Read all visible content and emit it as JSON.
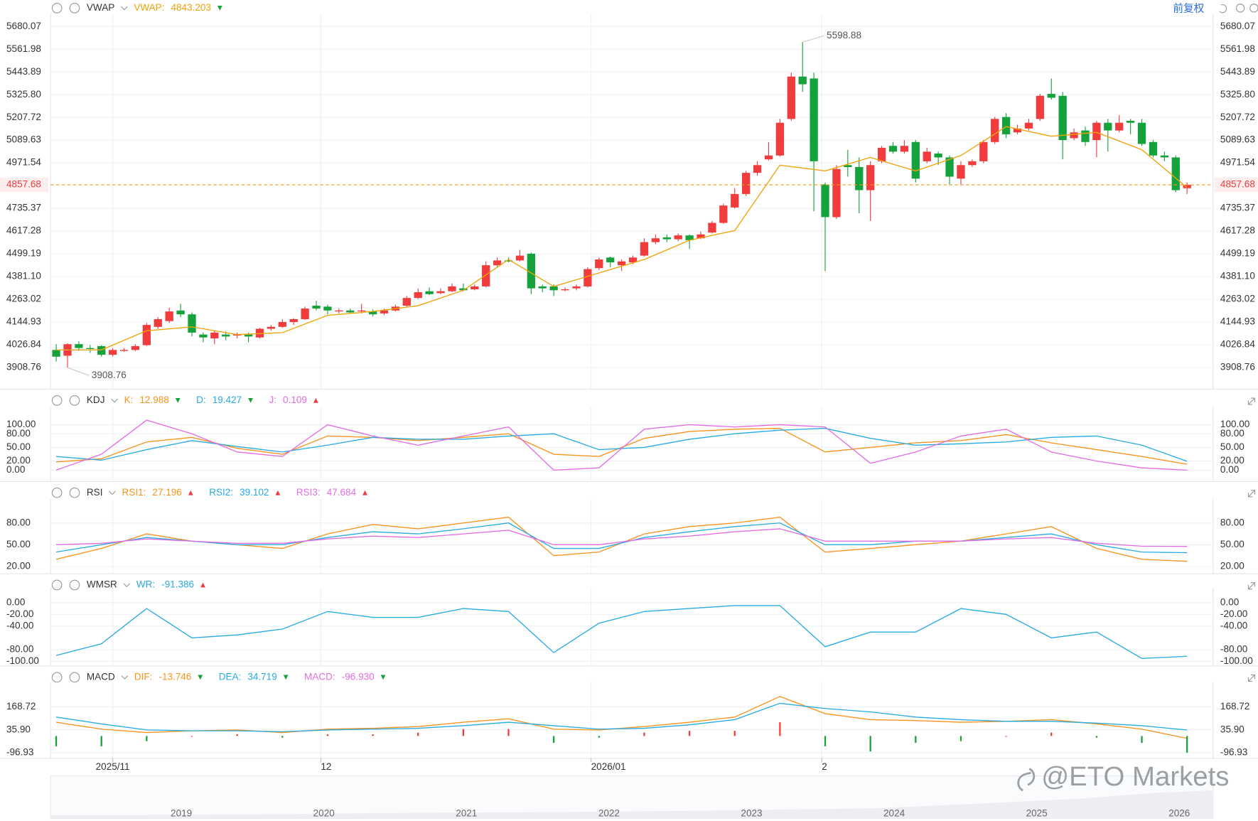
{
  "chart_data": [
    {
      "type": "candlestick",
      "title": "VWAP",
      "adjust": "前复权",
      "up_color": "#f03c3c",
      "down_color": "#16a23a",
      "xlim": [
        -0.5,
        102.3
      ],
      "xticks": [
        {
          "value": 5,
          "label": "2025/11"
        },
        {
          "value": 23.4,
          "label": "12"
        },
        {
          "value": 47.3,
          "label": "2026/01"
        },
        {
          "value": 67.7,
          "label": "2"
        }
      ],
      "ylim": [
        3796,
        5713
      ],
      "yticks": [
        5680.07,
        5561.98,
        5443.89,
        {
          "value": 5325.8,
          "label": "5325.80"
        },
        5207.72,
        5089.63,
        4971.54,
        4735.37,
        4617.28,
        4499.19,
        {
          "value": 4381.1,
          "label": "4381.10"
        },
        4263.02,
        4144.93,
        4026.84,
        3908.76
      ],
      "last_price": 4857.68,
      "last_price_color": "#f03c3c",
      "annotations": [
        {
          "x": 66,
          "value": 5598.88
        },
        {
          "x": 1,
          "value": 3908.76
        }
      ],
      "open": [
        4000,
        3970,
        4030,
        4010,
        4020,
        3975,
        3995,
        4000,
        4025,
        4120,
        4150,
        4205,
        4185,
        4080,
        4060,
        4080,
        4075,
        4080,
        4065,
        4110,
        4120,
        4145,
        4160,
        4230,
        4225,
        4200,
        4205,
        4200,
        4200,
        4190,
        4205,
        4230,
        4270,
        4305,
        4295,
        4305,
        4320,
        4315,
        4330,
        4440,
        4465,
        4465,
        4500,
        4330,
        4330,
        4310,
        4320,
        4330,
        4425,
        4480,
        4440,
        4455,
        4490,
        4560,
        4585,
        4575,
        4595,
        4580,
        4610,
        4660,
        4740,
        4810,
        4920,
        4990,
        5010,
        5200,
        5420,
        5410,
        4860,
        4690,
        4960,
        4950,
        4830,
        4980,
        5060,
        5030,
        5080,
        4980,
        5020,
        5000,
        4890,
        4960,
        4980,
        5080,
        5210,
        5130,
        5150,
        5200,
        5330,
        5320,
        5100,
        5140,
        5090,
        5180,
        5140,
        5190,
        5180,
        5080,
        5010,
        5000,
        4840
      ],
      "high": [
        4030,
        4035,
        4045,
        4025,
        4025,
        4010,
        4010,
        4030,
        4140,
        4170,
        4220,
        4240,
        4195,
        4090,
        4100,
        4095,
        4090,
        4090,
        4115,
        4130,
        4160,
        4165,
        4225,
        4255,
        4235,
        4215,
        4215,
        4240,
        4210,
        4215,
        4235,
        4280,
        4320,
        4325,
        4320,
        4345,
        4345,
        4340,
        4460,
        4480,
        4480,
        4520,
        4505,
        4340,
        4340,
        4325,
        4340,
        4430,
        4480,
        4485,
        4470,
        4490,
        4580,
        4600,
        4600,
        4605,
        4600,
        4615,
        4670,
        4760,
        4840,
        4930,
        4980,
        5080,
        5200,
        5440,
        5598.88,
        5440,
        4870,
        4960,
        5040,
        5000,
        4980,
        5060,
        5080,
        5090,
        5090,
        5050,
        5030,
        5010,
        4980,
        4990,
        5090,
        5210,
        5230,
        5170,
        5200,
        5330,
        5410,
        5340,
        5150,
        5160,
        5190,
        5200,
        5220,
        5200,
        5200,
        5090,
        5030,
        5010,
        4870
      ],
      "low": [
        3940,
        3908.76,
        3995,
        3985,
        3965,
        3965,
        3990,
        3995,
        4020,
        4110,
        4140,
        4170,
        4070,
        4040,
        4030,
        4050,
        4060,
        4040,
        4060,
        4100,
        4115,
        4130,
        4155,
        4205,
        4185,
        4190,
        4190,
        4190,
        4175,
        4180,
        4200,
        4225,
        4265,
        4285,
        4290,
        4300,
        4305,
        4310,
        4325,
        4430,
        4455,
        4460,
        4290,
        4300,
        4280,
        4305,
        4310,
        4325,
        4415,
        4430,
        4410,
        4445,
        4485,
        4550,
        4560,
        4565,
        4525,
        4575,
        4605,
        4655,
        4735,
        4800,
        4905,
        4985,
        5005,
        5190,
        5340,
        4720,
        4410,
        4680,
        4900,
        4710,
        4670,
        4970,
        5020,
        5020,
        4870,
        4970,
        4960,
        4860,
        4860,
        4950,
        4970,
        5070,
        5100,
        5120,
        5140,
        5190,
        5300,
        4990,
        5090,
        5060,
        5000,
        5030,
        5130,
        5120,
        5060,
        5000,
        4980,
        4820,
        4810
      ],
      "close": [
        3965,
        4030,
        4010,
        4005,
        3975,
        4000,
        4000,
        4020,
        4130,
        4160,
        4200,
        4185,
        4090,
        4065,
        4090,
        4070,
        4080,
        4070,
        4110,
        4120,
        4145,
        4160,
        4215,
        4215,
        4205,
        4205,
        4195,
        4205,
        4185,
        4205,
        4225,
        4270,
        4300,
        4290,
        4305,
        4330,
        4310,
        4330,
        4440,
        4465,
        4460,
        4490,
        4320,
        4320,
        4310,
        4315,
        4330,
        4420,
        4470,
        4455,
        4460,
        4480,
        4560,
        4580,
        4575,
        4595,
        4570,
        4600,
        4660,
        4750,
        4810,
        4920,
        4960,
        5010,
        5180,
        5420,
        5380,
        4980,
        4690,
        4940,
        4950,
        4830,
        4960,
        5050,
        5030,
        5060,
        4890,
        5030,
        5000,
        4900,
        4960,
        4980,
        5080,
        5200,
        5120,
        5150,
        5180,
        5320,
        5310,
        5090,
        5130,
        5080,
        5180,
        5140,
        5180,
        5180,
        5070,
        5010,
        5000,
        4830,
        4857.68
      ],
      "series": [
        {
          "name": "VWAP",
          "label": "VWAP:",
          "color": "#f0a30a",
          "readout": 4843.203,
          "trend": "down",
          "x": [
            0,
            4,
            8,
            12,
            16,
            20,
            24,
            28,
            32,
            36,
            40,
            44,
            48,
            52,
            56,
            60,
            64,
            68,
            72,
            76,
            80,
            84,
            88,
            92,
            96,
            100
          ],
          "values": [
            4000,
            4000,
            4100,
            4120,
            4080,
            4090,
            4180,
            4200,
            4230,
            4310,
            4470,
            4330,
            4400,
            4470,
            4570,
            4620,
            4960,
            4930,
            5000,
            4930,
            5010,
            5160,
            5110,
            5130,
            5040,
            4843.203
          ]
        }
      ]
    },
    {
      "type": "line",
      "title": "KDJ",
      "ylim": [
        -25,
        125
      ],
      "yticks": [
        {
          "value": 100,
          "label": "100.00"
        },
        {
          "value": 80,
          "label": "80.00"
        },
        {
          "value": 50,
          "label": "50.00"
        },
        {
          "value": 20,
          "label": "20.00"
        },
        {
          "value": 0,
          "label": "0.00"
        }
      ],
      "x": [
        0,
        4,
        8,
        12,
        16,
        20,
        24,
        28,
        32,
        36,
        40,
        44,
        48,
        52,
        56,
        60,
        64,
        68,
        72,
        76,
        80,
        84,
        88,
        92,
        96,
        100
      ],
      "series": [
        {
          "name": "K:",
          "color": "#f7931e",
          "readout": 12.988,
          "trend": "down",
          "values": [
            18,
            25,
            62,
            72,
            48,
            35,
            75,
            72,
            65,
            72,
            80,
            35,
            30,
            70,
            85,
            90,
            92,
            40,
            50,
            60,
            65,
            78,
            60,
            45,
            30,
            12.988
          ]
        },
        {
          "name": "D:",
          "color": "#29abe2",
          "readout": 19.427,
          "trend": "down",
          "values": [
            30,
            22,
            45,
            65,
            52,
            40,
            55,
            72,
            68,
            68,
            75,
            80,
            45,
            50,
            68,
            80,
            88,
            92,
            70,
            55,
            58,
            62,
            72,
            75,
            55,
            19.427
          ]
        },
        {
          "name": "J:",
          "color": "#e36ee3",
          "readout": 0.109,
          "trend": "up",
          "values": [
            0,
            35,
            110,
            80,
            40,
            30,
            100,
            75,
            55,
            75,
            95,
            0,
            5,
            90,
            100,
            95,
            100,
            95,
            15,
            40,
            75,
            90,
            40,
            20,
            5,
            0.109
          ]
        }
      ]
    },
    {
      "type": "line",
      "title": "RSI",
      "ylim": [
        10,
        104
      ],
      "yticks": [
        {
          "value": 80,
          "label": "80.00"
        },
        {
          "value": 50,
          "label": "50.00"
        },
        {
          "value": 20,
          "label": "20.00"
        }
      ],
      "x": [
        0,
        4,
        8,
        12,
        16,
        20,
        24,
        28,
        32,
        36,
        40,
        44,
        48,
        52,
        56,
        60,
        64,
        68,
        72,
        76,
        80,
        84,
        88,
        92,
        96,
        100
      ],
      "series": [
        {
          "name": "RSI1:",
          "color": "#f7931e",
          "readout": 27.196,
          "trend": "up",
          "values": [
            30,
            45,
            65,
            55,
            50,
            45,
            65,
            78,
            72,
            80,
            88,
            35,
            40,
            65,
            75,
            80,
            88,
            40,
            45,
            50,
            55,
            65,
            75,
            45,
            30,
            27.196
          ]
        },
        {
          "name": "RSI2:",
          "color": "#29abe2",
          "readout": 39.102,
          "trend": "up",
          "values": [
            40,
            50,
            60,
            55,
            50,
            50,
            60,
            68,
            65,
            72,
            80,
            45,
            45,
            60,
            68,
            75,
            80,
            50,
            50,
            55,
            55,
            60,
            65,
            50,
            40,
            39.102
          ]
        },
        {
          "name": "RSI3:",
          "color": "#e36ee3",
          "readout": 47.684,
          "trend": "up",
          "values": [
            50,
            52,
            58,
            55,
            52,
            52,
            58,
            62,
            60,
            65,
            70,
            50,
            50,
            58,
            62,
            68,
            72,
            55,
            55,
            55,
            55,
            58,
            60,
            52,
            48,
            47.684
          ]
        }
      ]
    },
    {
      "type": "line",
      "title": "WMSR",
      "ylim": [
        -108,
        15
      ],
      "yticks": [
        {
          "value": 0,
          "label": "0.00"
        },
        {
          "value": -20,
          "label": "-20.00"
        },
        {
          "value": -40,
          "label": "-40.00"
        },
        {
          "value": -80,
          "label": "-80.00"
        },
        {
          "value": -100,
          "label": "-100.00"
        }
      ],
      "x": [
        0,
        4,
        8,
        12,
        16,
        20,
        24,
        28,
        32,
        36,
        40,
        44,
        48,
        52,
        56,
        60,
        64,
        68,
        72,
        76,
        80,
        84,
        88,
        92,
        96,
        100
      ],
      "series": [
        {
          "name": "WR:",
          "color": "#29abe2",
          "readout": -91.386,
          "trend": "up",
          "values": [
            -90,
            -70,
            -10,
            -60,
            -55,
            -45,
            -15,
            -25,
            -25,
            -10,
            -15,
            -85,
            -35,
            -15,
            -10,
            -5,
            -5,
            -75,
            -50,
            -50,
            -10,
            -20,
            -60,
            -50,
            -95,
            -91.386
          ]
        }
      ]
    },
    {
      "type": "line",
      "title": "MACD",
      "ylim": [
        -130,
        276
      ],
      "yticks": [
        168.72,
        {
          "value": 35.9,
          "label": "35.90"
        },
        -96.93
      ],
      "up_color": "#f03c3c",
      "down_color": "#16a23a",
      "x": [
        0,
        4,
        8,
        12,
        16,
        20,
        24,
        28,
        32,
        36,
        40,
        44,
        48,
        52,
        56,
        60,
        64,
        68,
        72,
        76,
        80,
        84,
        88,
        92,
        96,
        100
      ],
      "series": [
        {
          "name": "DIF:",
          "color": "#f7931e",
          "readout": -13.746,
          "trend": "down",
          "values": [
            80,
            40,
            20,
            30,
            35,
            20,
            40,
            45,
            55,
            80,
            100,
            40,
            35,
            55,
            80,
            110,
            230,
            130,
            95,
            90,
            80,
            85,
            95,
            70,
            40,
            -13.746
          ]
        },
        {
          "name": "DEA:",
          "color": "#29abe2",
          "readout": 34.719,
          "trend": "down",
          "values": [
            110,
            70,
            35,
            30,
            30,
            25,
            35,
            40,
            45,
            60,
            80,
            60,
            40,
            45,
            65,
            95,
            190,
            160,
            140,
            110,
            95,
            85,
            85,
            75,
            60,
            34.719
          ]
        },
        {
          "name": "MACD:",
          "style": "bar",
          "color": "#e36ee3",
          "readout": {
            "value": -96.93,
            "label": "-96.930"
          },
          "trend": "down",
          "values": [
            -60,
            -60,
            -30,
            0,
            10,
            -10,
            10,
            10,
            20,
            40,
            40,
            -40,
            -10,
            20,
            30,
            30,
            80,
            -60,
            -90,
            -40,
            -30,
            0,
            20,
            -10,
            -40,
            -96.93
          ]
        }
      ]
    }
  ],
  "navigator": {
    "years": [
      2019,
      2020,
      2021,
      2022,
      2023,
      2024,
      2025,
      2026
    ]
  },
  "watermark": "@ETO Markets"
}
